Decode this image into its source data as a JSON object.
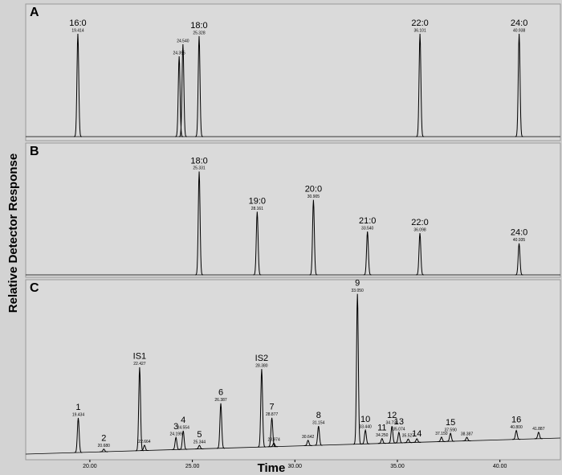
{
  "chart_data": {
    "type": "chromatogram",
    "xlabel": "Time",
    "ylabel": "Relative Detector Response",
    "xlim": [
      16.87,
      42.95
    ],
    "xticks": [
      {
        "value": 20,
        "label": "20.00"
      },
      {
        "value": 25,
        "label": "25.00"
      },
      {
        "value": 30,
        "label": "30.00"
      },
      {
        "value": 35,
        "label": "35.00"
      },
      {
        "value": 40,
        "label": "40.00"
      }
    ],
    "panels": [
      {
        "label": "A",
        "ylim": [
          0,
          100
        ],
        "categories": [
          "16:0",
          null,
          null,
          "18:0",
          "22:0",
          "24:0"
        ],
        "x": [
          19.414,
          24.355,
          24.54,
          25.328,
          36.101,
          40.938
        ],
        "x_labels": [
          "19.414",
          "24.355",
          "24.540",
          "25.328",
          "36.101",
          "40.938"
        ],
        "values": [
          77.6,
          60.6,
          69.7,
          75.8,
          77.6,
          77.6
        ]
      },
      {
        "label": "B",
        "ylim": [
          0,
          100
        ],
        "categories": [
          "18:0",
          "19:0",
          "20:0",
          "21:0",
          "22:0",
          "24:0"
        ],
        "x": [
          25.331,
          28.161,
          30.905,
          33.54,
          36.098,
          40.935
        ],
        "x_labels": [
          "25.331",
          "28.161",
          "30.905",
          "33.540",
          "36.098",
          "40.935"
        ],
        "values": [
          79.4,
          48.5,
          57.6,
          33.3,
          32.1,
          24.2
        ]
      },
      {
        "label": "C",
        "ylim": [
          0,
          100
        ],
        "categories": [
          "1",
          "2",
          "IS1",
          null,
          "3",
          "4",
          "5",
          "6",
          "IS2",
          "7",
          null,
          null,
          "8",
          "9",
          "10",
          "11",
          "12",
          "13",
          null,
          "14",
          null,
          "15",
          null,
          "16",
          null
        ],
        "x": [
          19.434,
          20.68,
          22.427,
          22.664,
          24.199,
          24.554,
          25.344,
          26.387,
          28.38,
          28.877,
          28.974,
          30.642,
          31.154,
          33.05,
          33.44,
          34.25,
          34.734,
          35.074,
          35.527,
          35.95,
          37.15,
          37.59,
          38.387,
          40.8,
          41.887
        ],
        "x_labels": [
          "19.434",
          "20.680",
          "22.427",
          "22.664",
          "24.199",
          "24.554",
          "25.344",
          "26.387",
          "28.380",
          "28.877",
          "28.974",
          "30.642",
          "31.154",
          "33.050",
          "33.440",
          "34.250",
          "34.734",
          "35.074",
          "35.527",
          null,
          "37.150",
          "37.590",
          "38.387",
          "40.800",
          "41.887"
        ],
        "values": [
          19.4,
          1.5,
          46.8,
          3,
          6.8,
          10.4,
          2,
          25.2,
          43.7,
          16.2,
          2,
          3,
          10.8,
          84.2,
          7.7,
          2.7,
          9.5,
          5.9,
          2,
          2,
          2.5,
          4.5,
          2,
          5,
          3.6
        ]
      }
    ]
  }
}
